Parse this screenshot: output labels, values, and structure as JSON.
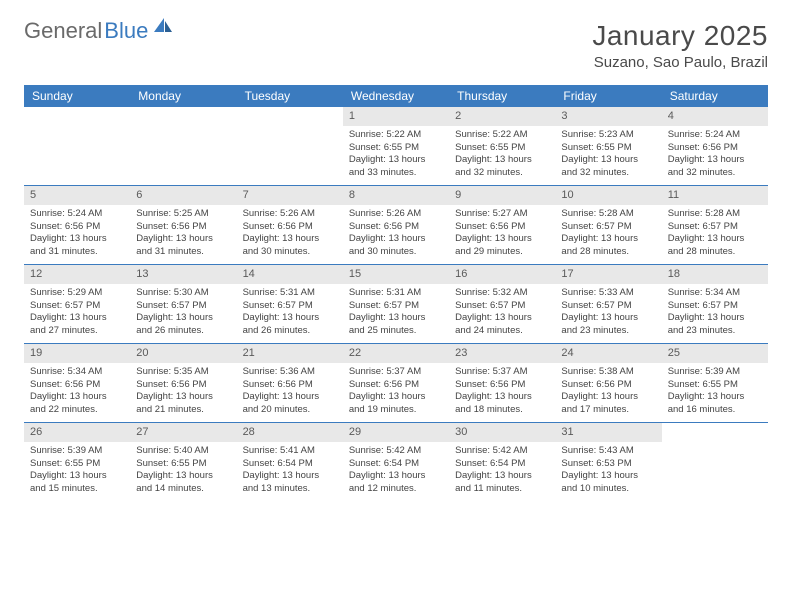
{
  "logo": {
    "text1": "General",
    "text2": "Blue"
  },
  "title": "January 2025",
  "location": "Suzano, Sao Paulo, Brazil",
  "day_header_bg": "#3b7bbf",
  "day_header_fg": "#ffffff",
  "num_bar_bg": "#e8e8e8",
  "week_border": "#3b7bbf",
  "days_of_week": [
    "Sunday",
    "Monday",
    "Tuesday",
    "Wednesday",
    "Thursday",
    "Friday",
    "Saturday"
  ],
  "weeks": [
    [
      {
        "empty": true
      },
      {
        "empty": true
      },
      {
        "empty": true
      },
      {
        "n": "1",
        "sunrise": "5:22 AM",
        "sunset": "6:55 PM",
        "daylight": "13 hours and 33 minutes."
      },
      {
        "n": "2",
        "sunrise": "5:22 AM",
        "sunset": "6:55 PM",
        "daylight": "13 hours and 32 minutes."
      },
      {
        "n": "3",
        "sunrise": "5:23 AM",
        "sunset": "6:55 PM",
        "daylight": "13 hours and 32 minutes."
      },
      {
        "n": "4",
        "sunrise": "5:24 AM",
        "sunset": "6:56 PM",
        "daylight": "13 hours and 32 minutes."
      }
    ],
    [
      {
        "n": "5",
        "sunrise": "5:24 AM",
        "sunset": "6:56 PM",
        "daylight": "13 hours and 31 minutes."
      },
      {
        "n": "6",
        "sunrise": "5:25 AM",
        "sunset": "6:56 PM",
        "daylight": "13 hours and 31 minutes."
      },
      {
        "n": "7",
        "sunrise": "5:26 AM",
        "sunset": "6:56 PM",
        "daylight": "13 hours and 30 minutes."
      },
      {
        "n": "8",
        "sunrise": "5:26 AM",
        "sunset": "6:56 PM",
        "daylight": "13 hours and 30 minutes."
      },
      {
        "n": "9",
        "sunrise": "5:27 AM",
        "sunset": "6:56 PM",
        "daylight": "13 hours and 29 minutes."
      },
      {
        "n": "10",
        "sunrise": "5:28 AM",
        "sunset": "6:57 PM",
        "daylight": "13 hours and 28 minutes."
      },
      {
        "n": "11",
        "sunrise": "5:28 AM",
        "sunset": "6:57 PM",
        "daylight": "13 hours and 28 minutes."
      }
    ],
    [
      {
        "n": "12",
        "sunrise": "5:29 AM",
        "sunset": "6:57 PM",
        "daylight": "13 hours and 27 minutes."
      },
      {
        "n": "13",
        "sunrise": "5:30 AM",
        "sunset": "6:57 PM",
        "daylight": "13 hours and 26 minutes."
      },
      {
        "n": "14",
        "sunrise": "5:31 AM",
        "sunset": "6:57 PM",
        "daylight": "13 hours and 26 minutes."
      },
      {
        "n": "15",
        "sunrise": "5:31 AM",
        "sunset": "6:57 PM",
        "daylight": "13 hours and 25 minutes."
      },
      {
        "n": "16",
        "sunrise": "5:32 AM",
        "sunset": "6:57 PM",
        "daylight": "13 hours and 24 minutes."
      },
      {
        "n": "17",
        "sunrise": "5:33 AM",
        "sunset": "6:57 PM",
        "daylight": "13 hours and 23 minutes."
      },
      {
        "n": "18",
        "sunrise": "5:34 AM",
        "sunset": "6:57 PM",
        "daylight": "13 hours and 23 minutes."
      }
    ],
    [
      {
        "n": "19",
        "sunrise": "5:34 AM",
        "sunset": "6:56 PM",
        "daylight": "13 hours and 22 minutes."
      },
      {
        "n": "20",
        "sunrise": "5:35 AM",
        "sunset": "6:56 PM",
        "daylight": "13 hours and 21 minutes."
      },
      {
        "n": "21",
        "sunrise": "5:36 AM",
        "sunset": "6:56 PM",
        "daylight": "13 hours and 20 minutes."
      },
      {
        "n": "22",
        "sunrise": "5:37 AM",
        "sunset": "6:56 PM",
        "daylight": "13 hours and 19 minutes."
      },
      {
        "n": "23",
        "sunrise": "5:37 AM",
        "sunset": "6:56 PM",
        "daylight": "13 hours and 18 minutes."
      },
      {
        "n": "24",
        "sunrise": "5:38 AM",
        "sunset": "6:56 PM",
        "daylight": "13 hours and 17 minutes."
      },
      {
        "n": "25",
        "sunrise": "5:39 AM",
        "sunset": "6:55 PM",
        "daylight": "13 hours and 16 minutes."
      }
    ],
    [
      {
        "n": "26",
        "sunrise": "5:39 AM",
        "sunset": "6:55 PM",
        "daylight": "13 hours and 15 minutes."
      },
      {
        "n": "27",
        "sunrise": "5:40 AM",
        "sunset": "6:55 PM",
        "daylight": "13 hours and 14 minutes."
      },
      {
        "n": "28",
        "sunrise": "5:41 AM",
        "sunset": "6:54 PM",
        "daylight": "13 hours and 13 minutes."
      },
      {
        "n": "29",
        "sunrise": "5:42 AM",
        "sunset": "6:54 PM",
        "daylight": "13 hours and 12 minutes."
      },
      {
        "n": "30",
        "sunrise": "5:42 AM",
        "sunset": "6:54 PM",
        "daylight": "13 hours and 11 minutes."
      },
      {
        "n": "31",
        "sunrise": "5:43 AM",
        "sunset": "6:53 PM",
        "daylight": "13 hours and 10 minutes."
      },
      {
        "empty": true
      }
    ]
  ],
  "labels": {
    "sunrise": "Sunrise: ",
    "sunset": "Sunset: ",
    "daylight": "Daylight: "
  }
}
